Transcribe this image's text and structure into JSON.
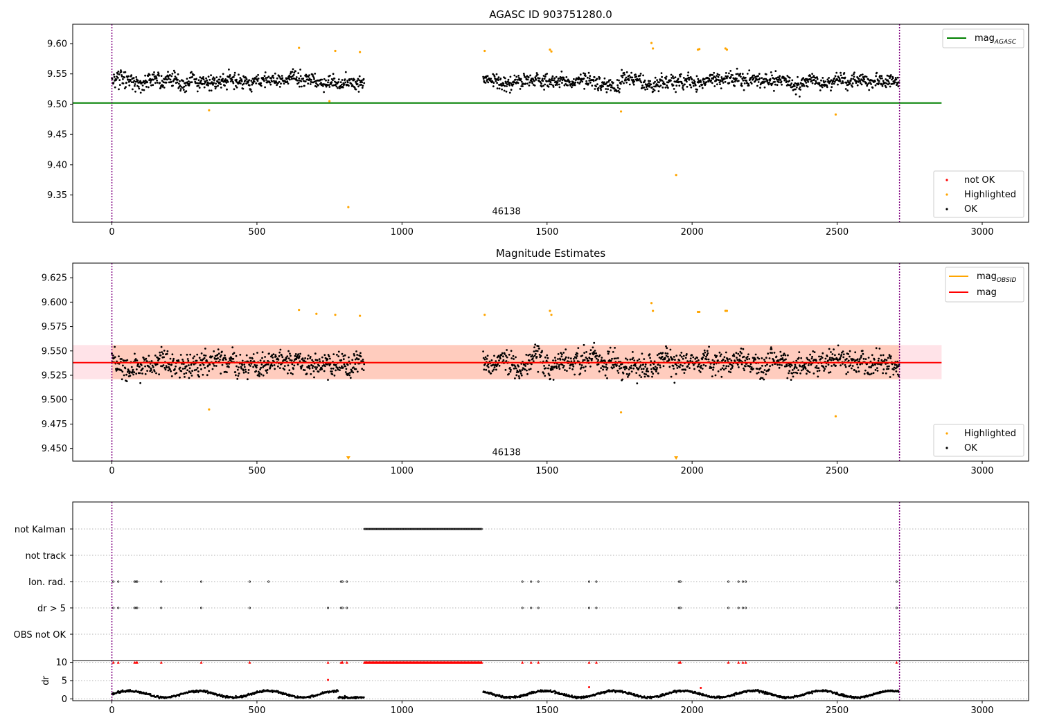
{
  "chart_data": [
    {
      "type": "scatter",
      "title": "AGASC ID 903751280.0",
      "xlabel": "",
      "ylabel": "",
      "xlim": [
        -135,
        3160
      ],
      "ylim": [
        9.305,
        9.632
      ],
      "xticks": [
        0,
        500,
        1000,
        1500,
        2000,
        2500,
        3000
      ],
      "yticks": [
        9.35,
        9.4,
        9.45,
        9.5,
        9.55,
        9.6
      ],
      "annotation": {
        "text": "46138",
        "x": 1360,
        "y": 9.318
      },
      "vlines": [
        0,
        2715
      ],
      "lines": [
        {
          "name": "mag",
          "sub": "AGASC",
          "color": "#008000",
          "y": 9.502,
          "x": [
            -135,
            2860
          ]
        }
      ],
      "legend_lines_position": "upper right",
      "legend_points_position": "lower right",
      "legend_points": [
        {
          "name": "not OK",
          "color": "#ff0000"
        },
        {
          "name": "Highlighted",
          "color": "#ffa500"
        },
        {
          "name": "OK",
          "color": "#000000"
        }
      ],
      "point_series": {
        "ok": {
          "color": "#000000",
          "segments": [
            [
              0,
              870
            ],
            [
              1280,
              2715
            ]
          ],
          "mean": 9.538,
          "spread": 0.018
        },
        "highlighted": {
          "color": "#ffa500",
          "x": [
            335,
            645,
            770,
            815,
            1285,
            1510,
            1515,
            1755,
            1860,
            1865,
            1945,
            2020,
            2025,
            2115,
            2120,
            2495,
            750,
            855
          ],
          "y": [
            9.49,
            9.593,
            9.588,
            9.33,
            9.588,
            9.59,
            9.587,
            9.488,
            9.601,
            9.592,
            9.383,
            9.59,
            9.591,
            9.592,
            9.59,
            9.483,
            9.505,
            9.586
          ]
        }
      }
    },
    {
      "type": "scatter",
      "title": "Magnitude Estimates",
      "xlabel": "",
      "ylabel": "",
      "xlim": [
        -135,
        3160
      ],
      "ylim": [
        9.437,
        9.64
      ],
      "xticks": [
        0,
        500,
        1000,
        1500,
        2000,
        2500,
        3000
      ],
      "yticks": [
        9.45,
        9.475,
        9.5,
        9.525,
        9.55,
        9.575,
        9.6,
        9.625
      ],
      "annotation": {
        "text": "46138",
        "x": 1360,
        "y": 9.443
      },
      "vlines": [
        0,
        2715
      ],
      "bands": [
        {
          "color": "#ffc0cb",
          "y0": 9.521,
          "y1": 9.556,
          "x0": -135,
          "x1": 2860,
          "opacity": 0.45
        },
        {
          "color": "#ffa070",
          "y0": 9.521,
          "y1": 9.556,
          "x0": 0,
          "x1": 2715,
          "opacity": 0.35
        }
      ],
      "lines": [
        {
          "name": "mag",
          "sub": "OBSID",
          "color": "#ffa500",
          "y": 9.538,
          "x": [
            0,
            2715
          ]
        },
        {
          "name": "mag",
          "sub": "",
          "color": "#ff0000",
          "y": 9.538,
          "x": [
            -135,
            2860
          ]
        }
      ],
      "legend_lines_position": "upper right",
      "legend_points_position": "lower right",
      "legend_points": [
        {
          "name": "Highlighted",
          "color": "#ffa500"
        },
        {
          "name": "OK",
          "color": "#000000"
        }
      ],
      "markers_at_bottom": {
        "color": "#ffa500",
        "x": [
          815,
          1945
        ]
      },
      "point_series": {
        "ok": {
          "color": "#000000",
          "segments": [
            [
              0,
              870
            ],
            [
              1280,
              2715
            ]
          ],
          "mean": 9.538,
          "spread": 0.018
        },
        "highlighted": {
          "color": "#ffa500",
          "x": [
            335,
            645,
            705,
            770,
            855,
            1285,
            1510,
            1515,
            1755,
            1860,
            1865,
            2020,
            2025,
            2115,
            2120,
            2495
          ],
          "y": [
            9.49,
            9.592,
            9.588,
            9.587,
            9.586,
            9.587,
            9.591,
            9.587,
            9.487,
            9.599,
            9.591,
            9.59,
            9.59,
            9.591,
            9.591,
            9.483
          ]
        }
      }
    },
    {
      "type": "scatter",
      "title": "",
      "xlim": [
        -135,
        3160
      ],
      "vlines": [
        0,
        2715
      ],
      "categories": [
        "not Kalman",
        "not track",
        "Ion. rad.",
        "dr > 5",
        "OBS not OK"
      ],
      "not_kalman": {
        "x0": 870,
        "x1": 1275
      },
      "flag_x": [
        5,
        22,
        78,
        83,
        87,
        170,
        308,
        475,
        540,
        790,
        795,
        810,
        1415,
        1445,
        1470,
        1645,
        1670,
        1955,
        1960,
        2125,
        2160,
        2175,
        2185,
        2705
      ],
      "dr_over5_x": [
        5,
        22,
        78,
        83,
        87,
        170,
        308,
        475,
        745,
        790,
        795,
        810,
        1415,
        1445,
        1470,
        1645,
        1670,
        1955,
        1960,
        2125,
        2160,
        2175,
        2185,
        2705
      ]
    },
    {
      "type": "scatter",
      "title": "",
      "xlabel": "",
      "ylabel": "dr",
      "xlim": [
        -135,
        3160
      ],
      "ylim": [
        -0.5,
        10.5
      ],
      "xticks": [
        0,
        500,
        1000,
        1500,
        2000,
        2500,
        3000
      ],
      "yticks": [
        0,
        5,
        10
      ],
      "vlines": [
        0,
        2715
      ],
      "segments": [
        [
          0,
          870
        ],
        [
          1280,
          2715
        ]
      ],
      "red_markers_top": {
        "color": "#ff0000",
        "y": 10,
        "x0": 870,
        "x1": 1275
      },
      "red_points": {
        "x": [
          745,
          1645,
          2030
        ],
        "y": [
          5.2,
          3.2,
          3.0
        ]
      }
    }
  ]
}
